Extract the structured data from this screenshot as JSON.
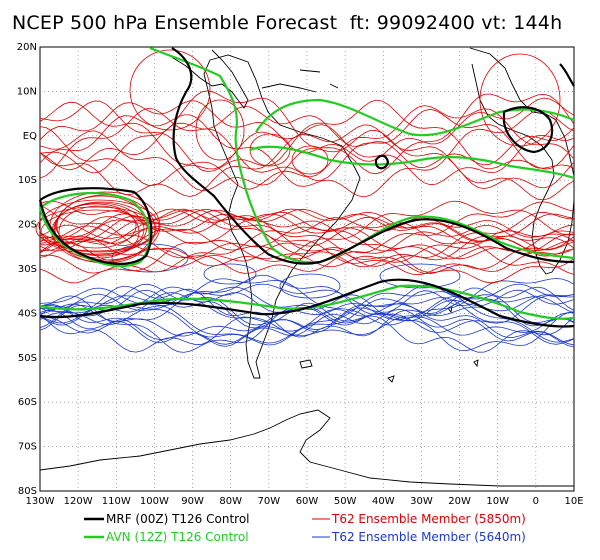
{
  "title": "NCEP 500 hPa Ensemble Forecast  ft: 99092400 vt: 144h",
  "lat_labels": [
    "20N",
    "10N",
    "EQ",
    "10S",
    "20S",
    "30S",
    "40S",
    "50S",
    "60S",
    "70S",
    "80S"
  ],
  "lon_labels": [
    "130W",
    "120W",
    "110W",
    "100W",
    "90W",
    "80W",
    "70W",
    "60W",
    "50W",
    "40W",
    "30W",
    "20W",
    "10W",
    "0",
    "10E"
  ],
  "legend": [
    {
      "label": "MRF (00Z) T126 Control",
      "color": "#000000"
    },
    {
      "label": "AVN (12Z) T126 Control",
      "color": "#22cc22"
    },
    {
      "label": "T62 Ensemble Member (5850m)",
      "color": "#dd0000"
    },
    {
      "label": "T62 Ensemble Member (5640m)",
      "color": "#1a3acc"
    }
  ],
  "colors": {
    "mrf": "#000000",
    "avn": "#22cc22",
    "red": "#dd0000",
    "blue": "#1a3acc",
    "coast": "#000000"
  }
}
